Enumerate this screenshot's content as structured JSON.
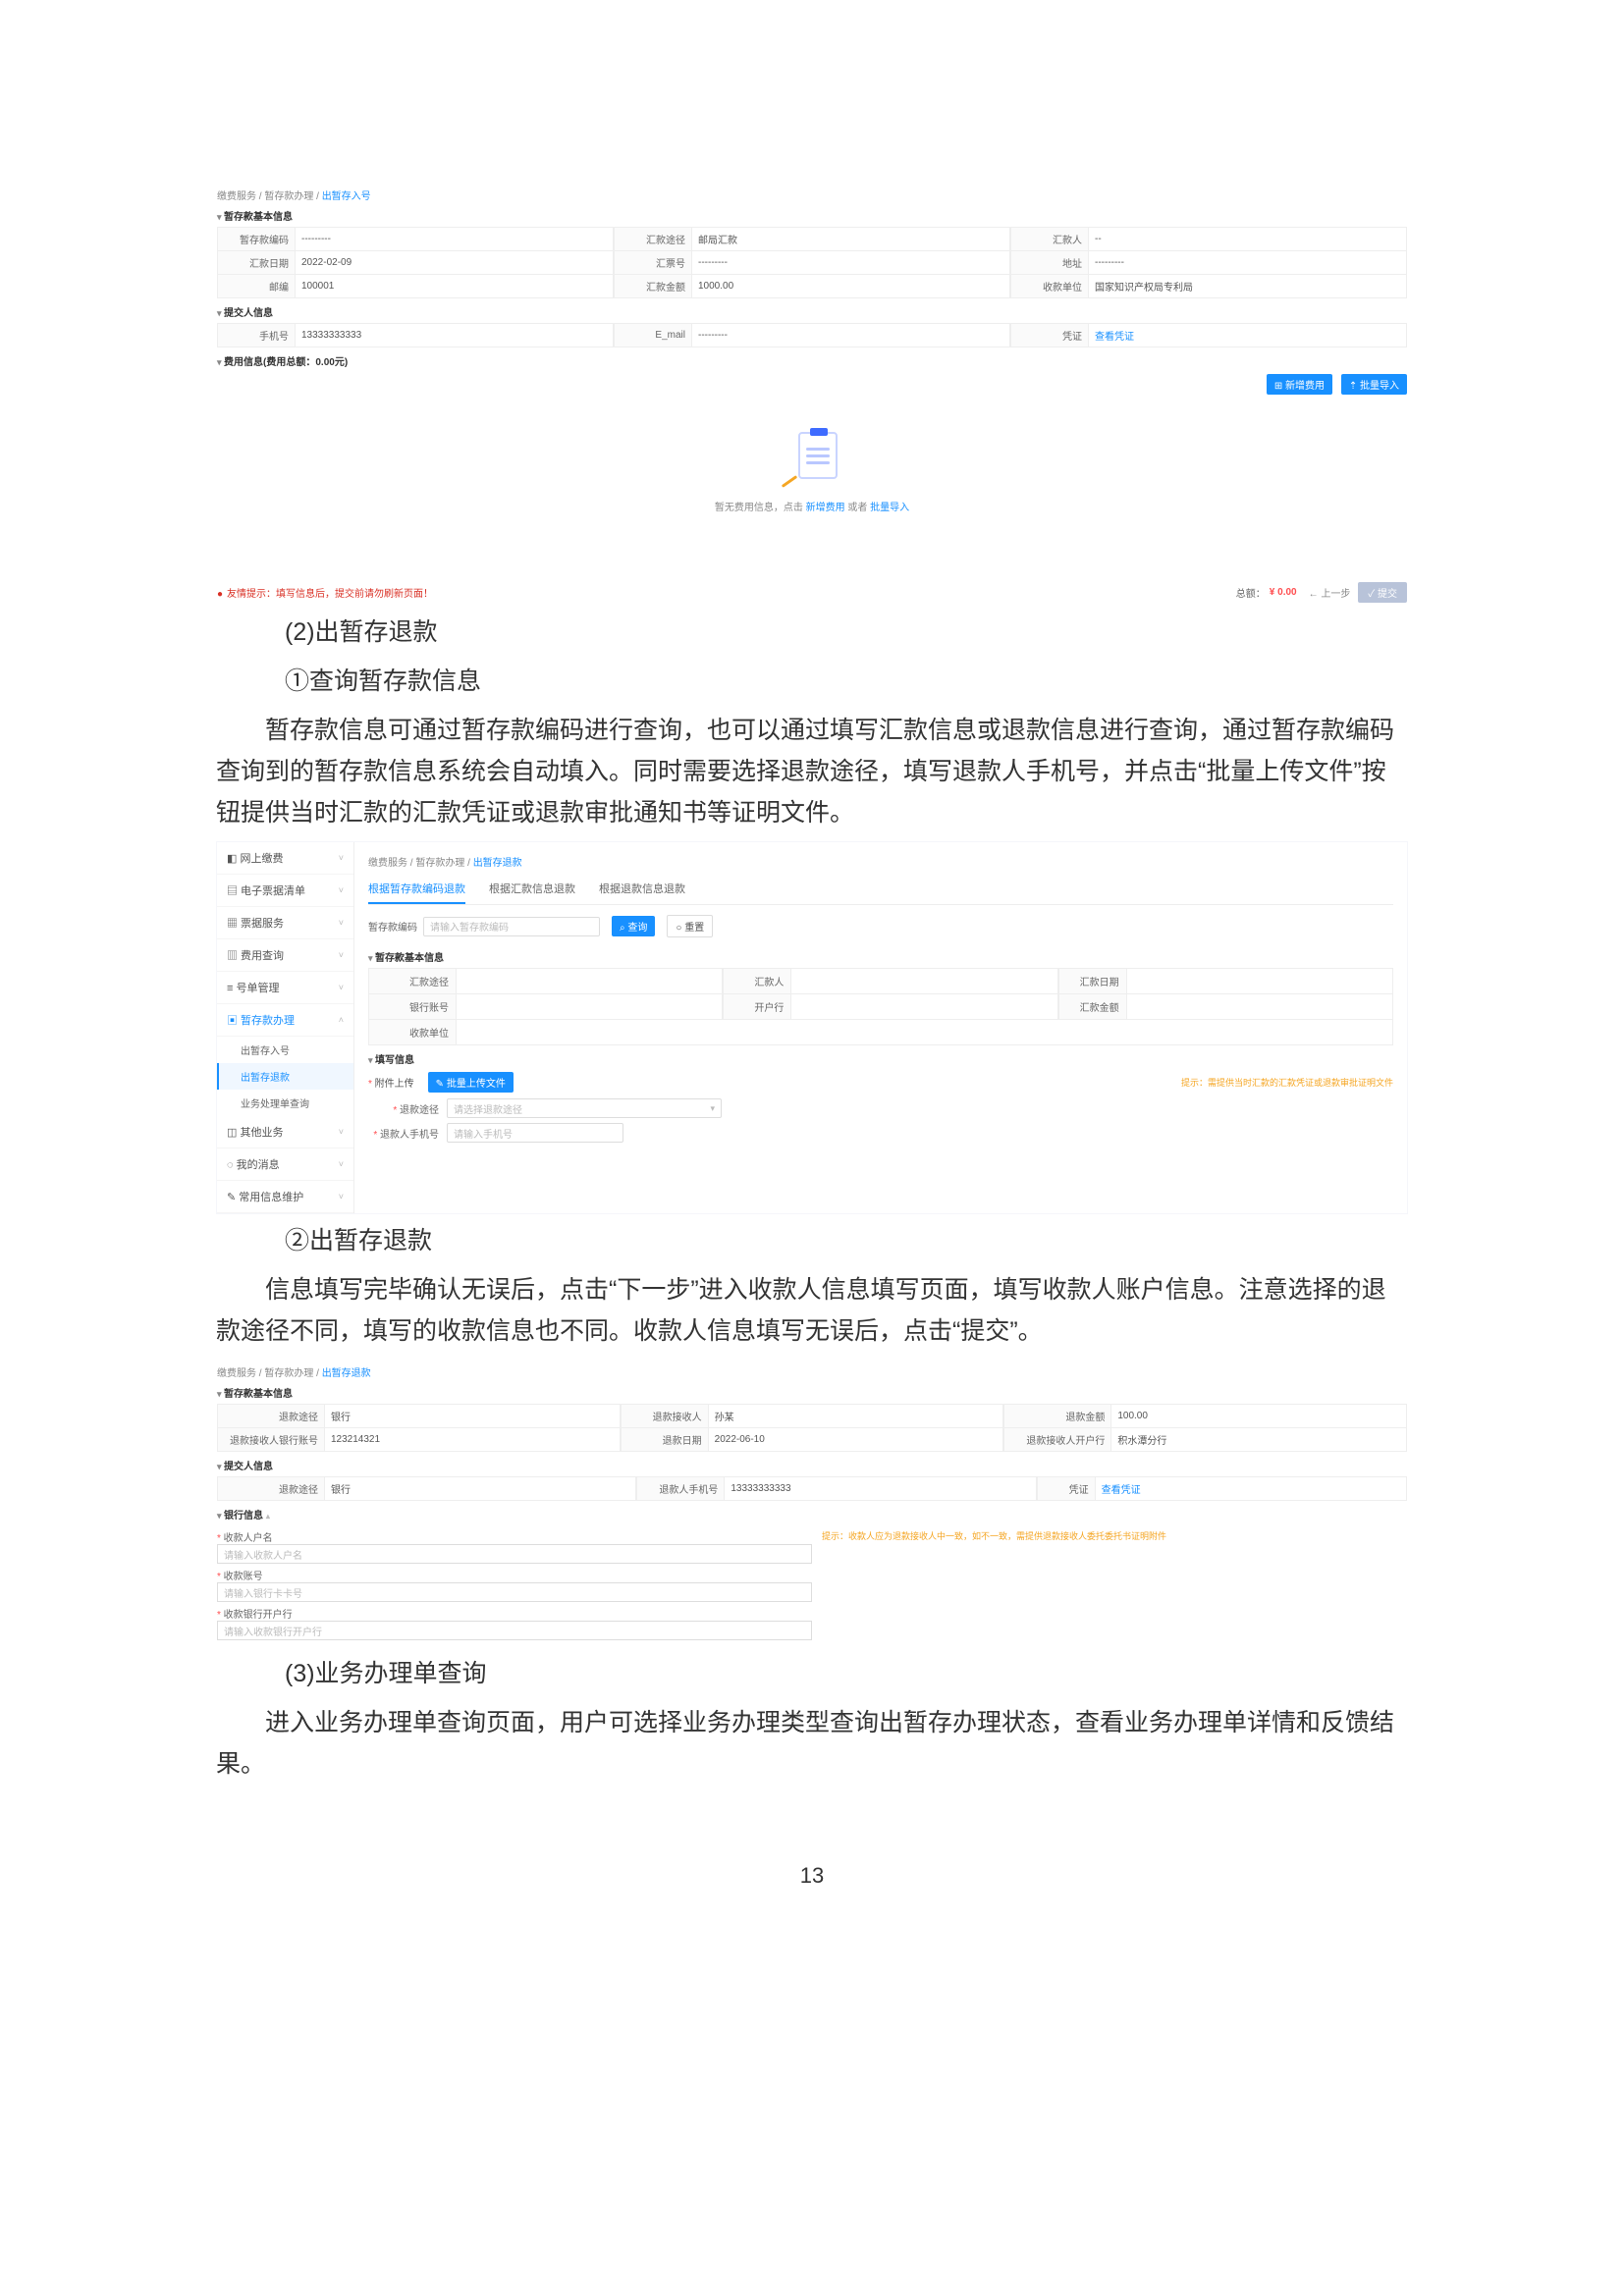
{
  "shot1": {
    "breadcrumb": [
      "缴费服务",
      "暂存款办理",
      "出暂存入号"
    ],
    "sect_basic": "暂存款基本信息",
    "rows": [
      {
        "l1": "暂存款编码",
        "v1": "---------",
        "l2": "汇款途径",
        "v2": "邮局汇款",
        "l3": "汇款人",
        "v3": "--"
      },
      {
        "l1": "汇款日期",
        "v1": "2022-02-09",
        "l2": "汇票号",
        "v2": "---------",
        "l3": "地址",
        "v3": "---------"
      },
      {
        "l1": "邮编",
        "v1": "100001",
        "l2": "汇款金额",
        "v2": "1000.00",
        "l3": "收款单位",
        "v3": "国家知识产权局专利局"
      }
    ],
    "sect_submitter": "提交人信息",
    "submitter": {
      "l1": "手机号",
      "v1": "13333333333",
      "l2": "E_mail",
      "v2": "---------",
      "l3": "凭证",
      "v3": "查看凭证"
    },
    "sect_fees": "费用信息(费用总额：0.00元)",
    "btn_add": "⊞ 新增费用",
    "btn_import": "⇡ 批量导入",
    "empty_prefix": "暂无费用信息，点击 ",
    "empty_link1": "新增费用",
    "empty_mid": " 或者 ",
    "empty_link2": "批量导入",
    "footer_warn": "友情提示：填写信息后，提交前请勿刷新页面！",
    "footer_total_lbl": "总额：",
    "footer_total_val": "¥ 0.00",
    "footer_prev": "← 上一步",
    "footer_submit": "✓ 提交"
  },
  "text1_heading": "(2)出暂存退款",
  "text1_sub": "①查询暂存款信息",
  "text1_para": "暂存款信息可通过暂存款编码进行查询，也可以通过填写汇款信息或退款信息进行查询，通过暂存款编码查询到的暂存款信息系统会自动填入。同时需要选择退款途径，填写退款人手机号，并点击“批量上传文件”按钮提供当时汇款的汇款凭证或退款审批通知书等证明文件。",
  "shot2": {
    "breadcrumb": [
      "缴费服务",
      "暂存款办理",
      "出暂存退款"
    ],
    "side": [
      {
        "label": "网上缴费",
        "icon": "◧",
        "expand": true,
        "expandable": true
      },
      {
        "label": "电子票据清单",
        "icon": "▤",
        "expand": true,
        "expandable": true
      },
      {
        "label": "票据服务",
        "icon": "▦",
        "expand": true,
        "expandable": true
      },
      {
        "label": "费用查询",
        "icon": "▥",
        "expand": true,
        "expandable": true
      },
      {
        "label": "号单管理",
        "icon": "≡",
        "expand": true,
        "expandable": true
      },
      {
        "label": "暂存款办理",
        "icon": "▣",
        "expand": false,
        "open": true,
        "sel": true,
        "subs": [
          {
            "label": "出暂存入号",
            "active": false
          },
          {
            "label": "出暂存退款",
            "active": true
          },
          {
            "label": "业务处理单查询",
            "active": false
          }
        ]
      },
      {
        "label": "其他业务",
        "icon": "◫",
        "expand": true,
        "expandable": true
      },
      {
        "label": "我的消息",
        "icon": "◌",
        "expand": true,
        "expandable": true
      },
      {
        "label": "常用信息维护",
        "icon": "✎",
        "expand": true,
        "expandable": true
      }
    ],
    "tabs": [
      "根据暂存款编码退款",
      "根据汇款信息退款",
      "根据退款信息退款"
    ],
    "active_tab": 0,
    "search_lbl": "暂存款编码",
    "search_ph": "请输入暂存款编码",
    "btn_query": "⌕ 查询",
    "btn_reset": "○ 重置",
    "sect_basic": "暂存款基本信息",
    "basic_rows": [
      {
        "l1": "汇款途径",
        "l2": "汇款人",
        "l3": "汇款日期"
      },
      {
        "l1": "银行账号",
        "l2": "开户行",
        "l3": "汇款金额"
      },
      {
        "l1": "收款单位",
        "l2": "",
        "l3": ""
      }
    ],
    "sect_fill": "填写信息",
    "upload_lbl": "附件上传",
    "upload_btn": "✎ 批量上传文件",
    "upload_hint": "提示：需提供当时汇款的汇款凭证或退款审批证明文件",
    "field_way_lbl": "退款途径",
    "field_way_ph": "请选择退款途径",
    "field_phone_lbl": "退款人手机号",
    "field_phone_ph": "请输入手机号"
  },
  "text2_sub": "②出暂存退款",
  "text2_para": "信息填写完毕确认无误后，点击“下一步”进入收款人信息填写页面，填写收款人账户信息。注意选择的退款途径不同，填写的收款信息也不同。收款人信息填写无误后，点击“提交”。",
  "shot3": {
    "breadcrumb": [
      "缴费服务",
      "暂存款办理",
      "出暂存退款"
    ],
    "sect_basic": "暂存款基本信息",
    "rows": [
      {
        "l1": "退款途径",
        "v1": "银行",
        "l2": "退款接收人",
        "v2": "孙某",
        "l3": "退款金额",
        "v3": "100.00"
      },
      {
        "l1": "退款接收人银行账号",
        "v1": "123214321",
        "l2": "退款日期",
        "v2": "2022-06-10",
        "l3": "退款接收人开户行",
        "v3": "积水潭分行"
      }
    ],
    "sect_submitter": "提交人信息",
    "submitter": {
      "l1": "退款途径",
      "v1": "银行",
      "l2": "退款人手机号",
      "v2": "13333333333",
      "l3": "凭证",
      "v3": "查看凭证"
    },
    "sect_bank": "银行信息",
    "bank_hint": "提示：收款人应为退款接收人中一致，如不一致，需提供退款接收人委托委托书证明附件",
    "bank_fields": [
      {
        "lbl": "收款人户名",
        "ph": "请输入收款人户名"
      },
      {
        "lbl": "收款账号",
        "ph": "请输入银行卡卡号"
      },
      {
        "lbl": "收款银行开户行",
        "ph": "请输入收款银行开户行"
      }
    ]
  },
  "text3_heading": "(3)业务办理单查询",
  "text3_para": "进入业务办理单查询页面，用户可选择业务办理类型查询出暂存办理状态，查看业务办理单详情和反馈结果。",
  "page_num": "13"
}
